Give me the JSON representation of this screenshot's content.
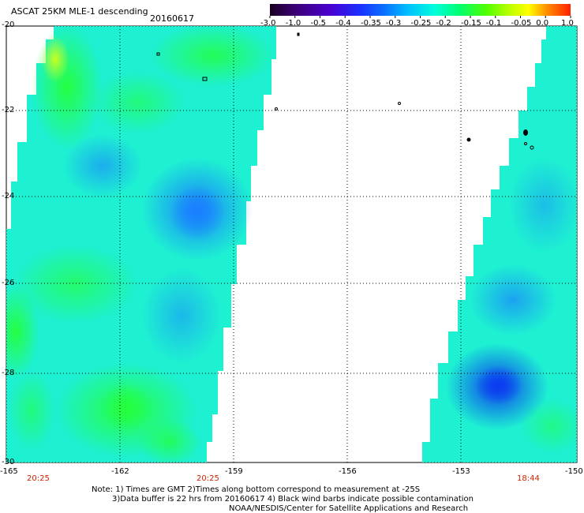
{
  "header": {
    "title": "ASCAT 25KM MLE-1 descending",
    "date": "20160617"
  },
  "colorbar": {
    "labels": [
      "-3.0",
      "-1.0",
      "-0.5",
      "-0.4",
      "-0.35",
      "-0.3",
      "-0.25",
      "-0.2",
      "-0.15",
      "-0.1",
      "-0.05",
      "0.0",
      "1.0"
    ],
    "colors": [
      "#1a0020",
      "#3a0070",
      "#5a00c0",
      "#2020ff",
      "#2060ff",
      "#00a0ff",
      "#00e0ff",
      "#00ffc0",
      "#00ff40",
      "#80ff00",
      "#ffff00",
      "#ff8000",
      "#ff2000"
    ]
  },
  "map": {
    "lat_labels": [
      "-20",
      "-22",
      "-24",
      "-26",
      "-28",
      "-30"
    ],
    "lon_labels": [
      "-165",
      "-162",
      "-159",
      "-156",
      "-153",
      "-150"
    ],
    "time_labels": [
      {
        "lon": "-164.5",
        "text": "20:25"
      },
      {
        "lon": "-159.5",
        "text": "20:25"
      },
      {
        "lon": "-151.7",
        "text": "18:44"
      }
    ]
  },
  "notes": {
    "line1": "Note: 1) Times are GMT 2)Times along bottom correspond to measurement at -25S",
    "line2": "3)Data buffer is 22 hrs from 20160617 4) Black wind barbs indicate possible contamination",
    "line3": "NOAA/NESDIS/Center for Satellite Applications and Research"
  }
}
